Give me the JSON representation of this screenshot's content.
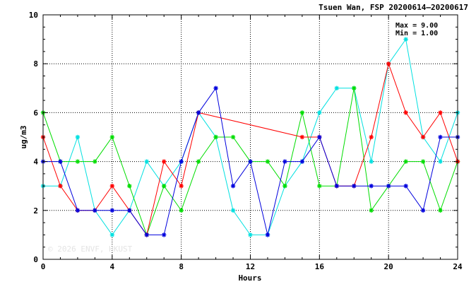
{
  "chart_data": {
    "type": "line",
    "title": "Tsuen Wan, FSP 20200614—20200617",
    "xlabel": "Hours",
    "ylabel": "ug/m3",
    "xlim": [
      0,
      24
    ],
    "ylim": [
      0,
      10
    ],
    "xticks": [
      0,
      4,
      8,
      12,
      16,
      20,
      24
    ],
    "yticks": [
      0,
      2,
      4,
      6,
      8,
      10
    ],
    "grid": true,
    "annotations": {
      "max": "Max = 9.00",
      "min": "Min = 1.00"
    },
    "watermark": "© 2026  ENVF, HKUST",
    "series": [
      {
        "color": "#00e0e0",
        "points": [
          [
            0,
            3
          ],
          [
            1,
            3
          ],
          [
            2,
            5
          ],
          [
            3,
            2
          ],
          [
            4,
            1
          ],
          [
            5,
            2
          ],
          [
            6,
            4
          ],
          [
            7,
            3
          ],
          [
            8,
            4
          ],
          [
            9,
            6
          ],
          [
            10,
            5
          ],
          [
            11,
            2
          ],
          [
            12,
            1
          ],
          [
            13,
            1
          ],
          [
            14,
            3
          ],
          [
            15,
            4
          ],
          [
            16,
            6
          ],
          [
            17,
            7
          ],
          [
            18,
            7
          ],
          [
            19,
            4
          ],
          [
            20,
            8
          ],
          [
            21,
            9
          ],
          [
            22,
            5
          ],
          [
            23,
            4
          ],
          [
            24,
            6
          ]
        ]
      },
      {
        "color": "#00dd00",
        "points": [
          [
            0,
            6
          ],
          [
            1,
            4
          ],
          [
            2,
            4
          ],
          [
            3,
            4
          ],
          [
            4,
            5
          ],
          [
            5,
            3
          ],
          [
            6,
            1
          ],
          [
            7,
            3
          ],
          [
            8,
            2
          ],
          [
            9,
            4
          ],
          [
            10,
            5
          ],
          [
            11,
            5
          ],
          [
            12,
            4
          ],
          [
            13,
            4
          ],
          [
            14,
            3
          ],
          [
            15,
            6
          ],
          [
            16,
            3
          ],
          [
            17,
            3
          ],
          [
            18,
            7
          ],
          [
            19,
            2
          ],
          [
            20,
            3
          ],
          [
            21,
            4
          ],
          [
            22,
            4
          ],
          [
            23,
            2
          ],
          [
            24,
            4
          ]
        ]
      },
      {
        "color": "#ff0000",
        "points": [
          [
            0,
            5
          ],
          [
            1,
            3
          ],
          [
            2,
            2
          ],
          [
            3,
            2
          ],
          [
            4,
            3
          ],
          [
            5,
            2
          ],
          [
            6,
            1
          ],
          [
            7,
            4
          ],
          [
            8,
            3
          ],
          [
            9,
            6
          ],
          [
            15,
            5
          ],
          [
            16,
            5
          ],
          [
            17,
            3
          ],
          [
            18,
            3
          ],
          [
            19,
            5
          ],
          [
            20,
            8
          ],
          [
            21,
            6
          ],
          [
            22,
            5
          ],
          [
            23,
            6
          ],
          [
            24,
            4
          ]
        ]
      },
      {
        "color": "#0000dd",
        "points": [
          [
            0,
            4
          ],
          [
            1,
            4
          ],
          [
            2,
            2
          ],
          [
            3,
            2
          ],
          [
            4,
            2
          ],
          [
            5,
            2
          ],
          [
            6,
            1
          ],
          [
            7,
            1
          ],
          [
            8,
            4
          ],
          [
            9,
            6
          ],
          [
            10,
            7
          ],
          [
            11,
            3
          ],
          [
            12,
            4
          ],
          [
            13,
            1
          ],
          [
            14,
            4
          ],
          [
            15,
            4
          ],
          [
            16,
            5
          ],
          [
            17,
            3
          ],
          [
            18,
            3
          ],
          [
            19,
            3
          ],
          [
            20,
            3
          ],
          [
            21,
            3
          ],
          [
            22,
            2
          ],
          [
            23,
            5
          ],
          [
            24,
            5
          ]
        ]
      }
    ]
  }
}
